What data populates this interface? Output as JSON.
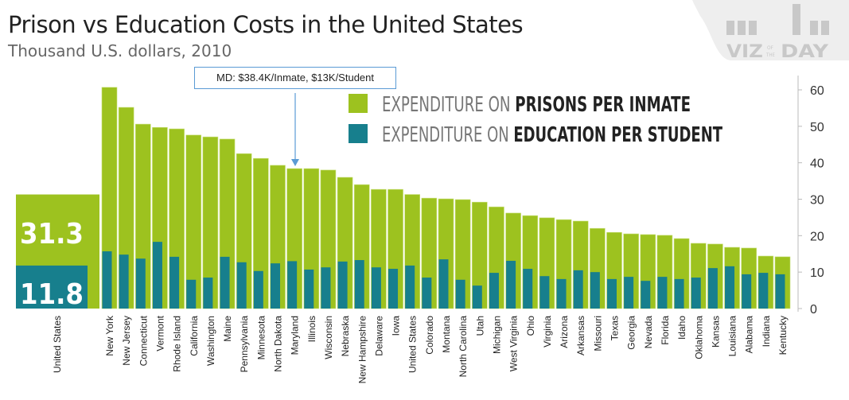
{
  "chart_data": {
    "type": "bar",
    "title": "Prison vs Education Costs in the United States",
    "subtitle": "Thousand U.S. dollars, 2010",
    "ylim": [
      0,
      60
    ],
    "yticks": [
      0,
      10,
      20,
      30,
      40,
      50,
      60
    ],
    "grid": false,
    "legend_placement": "top-right",
    "colors": {
      "prisons": "#9dc21f",
      "education": "#177f8d"
    },
    "summary": {
      "label": "United States",
      "prisons": 31.3,
      "education": 11.8
    },
    "categories": [
      "New York",
      "New Jersey",
      "Connecticut",
      "Vermont",
      "Rhode Island",
      "California",
      "Washington",
      "Maine",
      "Pennsylvania",
      "Minnesota",
      "North Dakota",
      "Maryland",
      "Illinois",
      "Wisconsin",
      "Nebraska",
      "New Hampshire",
      "Delaware",
      "Iowa",
      "United States",
      "Colorado",
      "Montana",
      "North Carolina",
      "Utah",
      "Michigan",
      "West Virginia",
      "Ohio",
      "Virginia",
      "Arizona",
      "Arkansas",
      "Missouri",
      "Texas",
      "Georgia",
      "Nevada",
      "Florida",
      "Idaho",
      "Oklahoma",
      "Kansas",
      "Louisiana",
      "Alabama",
      "Indiana",
      "Kentucky"
    ],
    "series": [
      {
        "name": "Expenditure on Prisons per Inmate",
        "legend_prefix": "EXPENDITURE ON ",
        "legend_bold": "PRISONS PER INMATE",
        "values": [
          60.7,
          55.2,
          50.6,
          49.7,
          49.3,
          47.6,
          47.1,
          46.5,
          42.5,
          41.2,
          39.3,
          38.4,
          38.4,
          38.0,
          36.0,
          34.0,
          32.7,
          32.7,
          31.3,
          30.3,
          30.1,
          29.9,
          29.2,
          27.9,
          26.2,
          25.5,
          24.9,
          24.4,
          24.0,
          22.0,
          20.9,
          20.5,
          20.3,
          20.1,
          19.2,
          17.9,
          17.7,
          16.8,
          16.6,
          14.4,
          14.2
        ]
      },
      {
        "name": "Expenditure on Education per Student",
        "legend_prefix": "EXPENDITURE ON ",
        "legend_bold": "EDUCATION PER STUDENT",
        "values": [
          15.7,
          14.8,
          13.7,
          18.3,
          14.2,
          7.9,
          8.5,
          14.2,
          12.7,
          10.3,
          12.4,
          13.0,
          10.7,
          11.3,
          12.9,
          13.3,
          11.3,
          10.9,
          11.8,
          8.5,
          13.5,
          7.9,
          6.3,
          9.8,
          13.1,
          10.9,
          8.9,
          8.1,
          10.5,
          10.0,
          8.1,
          8.7,
          7.6,
          8.7,
          8.1,
          8.5,
          11.1,
          11.6,
          9.4,
          9.8,
          9.4
        ]
      }
    ],
    "annotation": "MD: $38.4K/Inmate,  $13K/Student"
  },
  "logo": {
    "text": "VIZ OF THE DAY"
  }
}
